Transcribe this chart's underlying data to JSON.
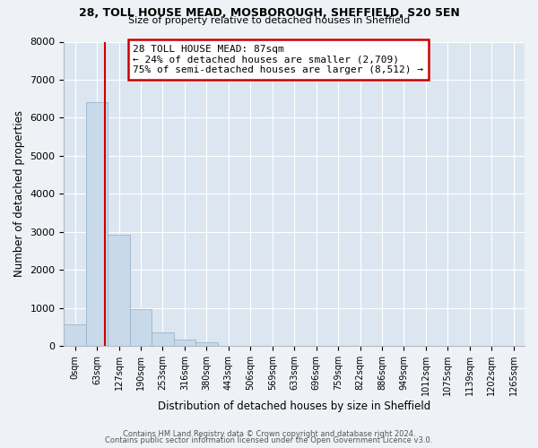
{
  "title1": "28, TOLL HOUSE MEAD, MOSBOROUGH, SHEFFIELD, S20 5EN",
  "title2": "Size of property relative to detached houses in Sheffield",
  "xlabel": "Distribution of detached houses by size in Sheffield",
  "ylabel": "Number of detached properties",
  "bar_labels": [
    "0sqm",
    "63sqm",
    "127sqm",
    "190sqm",
    "253sqm",
    "316sqm",
    "380sqm",
    "443sqm",
    "506sqm",
    "569sqm",
    "633sqm",
    "696sqm",
    "759sqm",
    "822sqm",
    "886sqm",
    "949sqm",
    "1012sqm",
    "1075sqm",
    "1139sqm",
    "1202sqm",
    "1265sqm"
  ],
  "bar_heights": [
    560,
    6420,
    2920,
    975,
    350,
    165,
    90,
    0,
    0,
    0,
    0,
    0,
    0,
    0,
    0,
    0,
    0,
    0,
    0,
    0,
    0
  ],
  "bar_color": "#c8d9ea",
  "bar_edge_color": "#9ab4cc",
  "vline_x": 1.38,
  "vline_color": "#cc0000",
  "annotation_text": "28 TOLL HOUSE MEAD: 87sqm\n← 24% of detached houses are smaller (2,709)\n75% of semi-detached houses are larger (8,512) →",
  "annotation_box_facecolor": "#ffffff",
  "annotation_box_edgecolor": "#cc0000",
  "ylim": [
    0,
    8000
  ],
  "yticks": [
    0,
    1000,
    2000,
    3000,
    4000,
    5000,
    6000,
    7000,
    8000
  ],
  "bg_color": "#eef1f5",
  "plot_bg_color": "#dce6f0",
  "grid_color": "#ffffff",
  "footer_line1": "Contains HM Land Registry data © Crown copyright and database right 2024.",
  "footer_line2": "Contains public sector information licensed under the Open Government Licence v3.0."
}
